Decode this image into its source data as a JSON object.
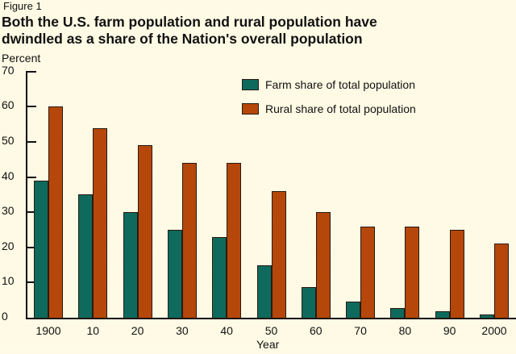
{
  "figure_label": "Figure 1",
  "title": "Both the U.S. farm population and rural population have dwindled as a share of the Nation's overall population",
  "title_lines": [
    "Both the U.S. farm population and rural population have",
    "dwindled as a share of the Nation's overall population"
  ],
  "colors": {
    "farm": "#0e6a5d",
    "rural": "#b5470b",
    "background": "#fffbe6"
  },
  "chart_data": {
    "type": "bar",
    "title": "Both the U.S. farm population and rural population have dwindled as a share of the Nation's overall population",
    "xlabel": "Year",
    "ylabel": "Percent",
    "ylim": [
      0,
      70
    ],
    "yticks": [
      0,
      10,
      20,
      30,
      40,
      50,
      60,
      70
    ],
    "categories": [
      "1900",
      "10",
      "20",
      "30",
      "40",
      "50",
      "60",
      "70",
      "80",
      "90",
      "2000"
    ],
    "series": [
      {
        "name": "Farm share of total population",
        "color": "#0e6a5d",
        "values": [
          39,
          35,
          30,
          25,
          23,
          15,
          8.7,
          4.7,
          2.7,
          1.9,
          1.0
        ]
      },
      {
        "name": "Rural share of total population",
        "color": "#b5470b",
        "values": [
          60,
          54,
          49,
          44,
          44,
          36,
          30,
          26,
          26,
          25,
          21
        ]
      }
    ],
    "legend_position": "upper right",
    "grid": false
  }
}
